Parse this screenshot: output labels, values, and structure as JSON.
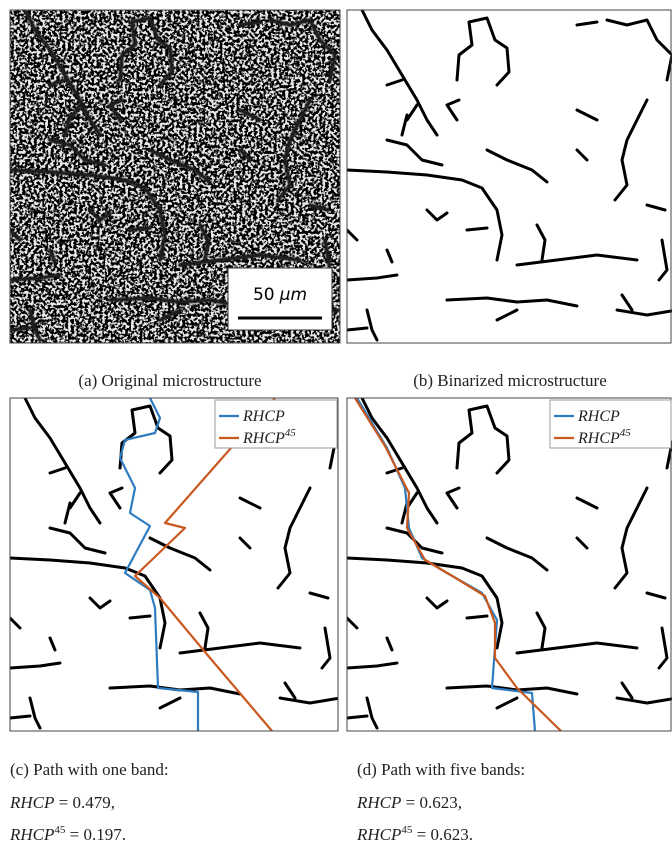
{
  "panels": [
    {
      "caption": "(a) Original microstructure",
      "scale_bar": {
        "value": "50",
        "unit": "μm"
      }
    },
    {
      "caption": "(b) Binarized microstructure"
    },
    {
      "caption": "(c) Path with one band:",
      "legend": [
        {
          "base": "RHCP"
        },
        {
          "base": "RHCP",
          "sup": "45"
        }
      ],
      "results": [
        {
          "base": "RHCP",
          "rest": " = 0.479,"
        },
        {
          "base": "RHCP",
          "sup": "45",
          "rest": " = 0.197."
        }
      ]
    },
    {
      "caption": "(d) Path with five bands:",
      "legend": [
        {
          "base": "RHCP"
        },
        {
          "base": "RHCP",
          "sup": "45"
        }
      ],
      "results": [
        {
          "base": "RHCP",
          "rest": " = 0.623,"
        },
        {
          "base": "RHCP",
          "sup": "45",
          "rest": " = 0.623."
        }
      ]
    }
  ]
}
